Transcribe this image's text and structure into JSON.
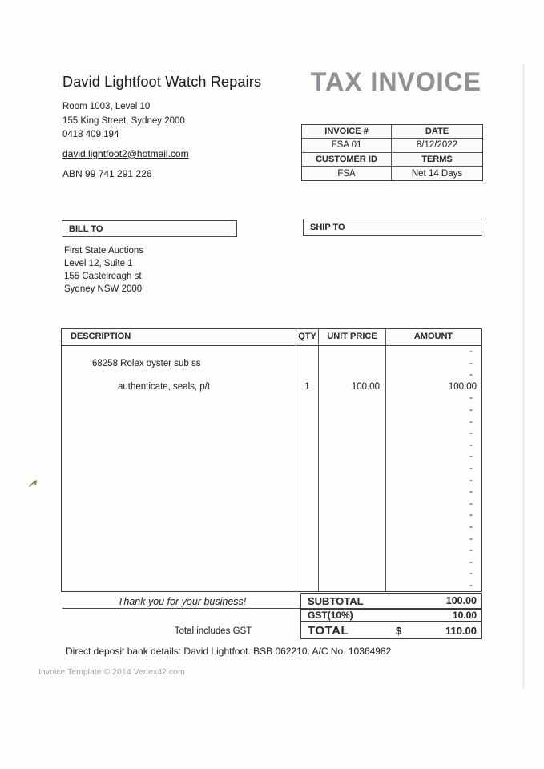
{
  "header": {
    "company_name": "David Lightfoot Watch Repairs",
    "address_lines": [
      "Room 1003, Level 10",
      "155 King Street, Sydney 2000",
      "0418 409 194"
    ],
    "email": "david.lightfoot2@hotmail.com",
    "abn": "ABN 99 741 291 226",
    "doc_title": "TAX INVOICE"
  },
  "meta": {
    "invoice_label": "INVOICE #",
    "date_label": "DATE",
    "invoice_value": "FSA 01",
    "date_value": "8/12/2022",
    "customer_label": "CUSTOMER ID",
    "terms_label": "TERMS",
    "customer_value": "FSA",
    "terms_value": "Net 14 Days"
  },
  "parties": {
    "bill_to_label": "BILL TO",
    "ship_to_label": "SHIP TO",
    "bill_to_lines": [
      "First State Auctions",
      "Level 12, Suite 1",
      "155 Castelreagh st",
      "Sydney NSW 2000"
    ]
  },
  "items": {
    "columns": {
      "description": "DESCRIPTION",
      "qty": "QTY",
      "unit_price": "UNIT PRICE",
      "amount": "AMOUNT"
    },
    "rows": [
      {
        "desc": "",
        "qty": "",
        "unit": "",
        "amount": "-",
        "indent": 0
      },
      {
        "desc": "68258 Rolex oyster sub ss",
        "qty": "",
        "unit": "",
        "amount": "-",
        "indent": 1
      },
      {
        "desc": "",
        "qty": "",
        "unit": "",
        "amount": "-",
        "indent": 0
      },
      {
        "desc": "authenticate, seals, p/t",
        "qty": "1",
        "unit": "100.00",
        "amount": "100.00",
        "indent": 2
      },
      {
        "desc": "",
        "qty": "",
        "unit": "",
        "amount": "-",
        "indent": 0
      },
      {
        "desc": "",
        "qty": "",
        "unit": "",
        "amount": "-",
        "indent": 0
      },
      {
        "desc": "",
        "qty": "",
        "unit": "",
        "amount": "-",
        "indent": 0
      },
      {
        "desc": "",
        "qty": "",
        "unit": "",
        "amount": "-",
        "indent": 0
      },
      {
        "desc": "",
        "qty": "",
        "unit": "",
        "amount": "-",
        "indent": 0
      },
      {
        "desc": "",
        "qty": "",
        "unit": "",
        "amount": "-",
        "indent": 0
      },
      {
        "desc": "",
        "qty": "",
        "unit": "",
        "amount": "-",
        "indent": 0
      },
      {
        "desc": "",
        "qty": "",
        "unit": "",
        "amount": "-",
        "indent": 0
      },
      {
        "desc": "",
        "qty": "",
        "unit": "",
        "amount": "-",
        "indent": 0
      },
      {
        "desc": "",
        "qty": "",
        "unit": "",
        "amount": "-",
        "indent": 0
      },
      {
        "desc": "",
        "qty": "",
        "unit": "",
        "amount": "-",
        "indent": 0
      },
      {
        "desc": "",
        "qty": "",
        "unit": "",
        "amount": "-",
        "indent": 0
      },
      {
        "desc": "",
        "qty": "",
        "unit": "",
        "amount": "-",
        "indent": 0
      },
      {
        "desc": "",
        "qty": "",
        "unit": "",
        "amount": "-",
        "indent": 0
      },
      {
        "desc": "",
        "qty": "",
        "unit": "",
        "amount": "-",
        "indent": 0
      },
      {
        "desc": "",
        "qty": "",
        "unit": "",
        "amount": "-",
        "indent": 0
      },
      {
        "desc": "",
        "qty": "",
        "unit": "",
        "amount": "-",
        "indent": 0
      }
    ]
  },
  "summary": {
    "thanks": "Thank you for your business!",
    "subtotal_label": "SUBTOTAL",
    "subtotal_value": "100.00",
    "gst_label": "GST(10%)",
    "gst_value": "10.00",
    "total_label": "TOTAL",
    "currency": "$",
    "total_value": "110.00",
    "includes_gst": "Total includes GST"
  },
  "footer": {
    "bank_details": "Direct deposit bank details: David Lightfoot. BSB 062210. A/C No. 10364982",
    "template_credit": "Invoice Template © 2014 Vertex42.com"
  },
  "colors": {
    "title_gray": "#8f9194",
    "border_dark": "#3f3f3f",
    "text": "#2e2e2e",
    "muted": "#a3a3a3",
    "artifact_olive": "#86843c"
  }
}
